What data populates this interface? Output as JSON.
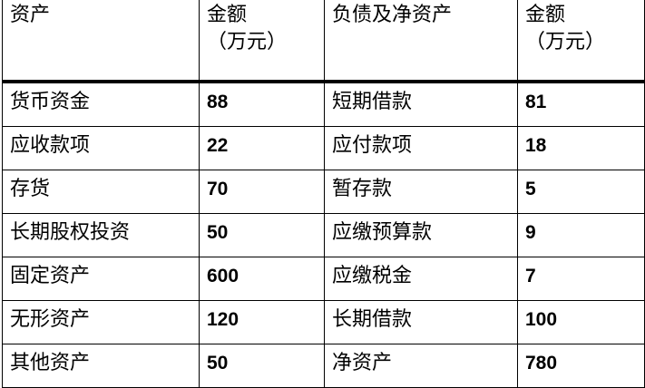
{
  "headers": {
    "assets": "资产",
    "amount1_line1": "金额",
    "amount1_line2": "（万元）",
    "liabilities": "负债及净资产",
    "amount2_line1": "金额",
    "amount2_line2": "（万元）"
  },
  "rows": [
    {
      "asset": "货币资金",
      "asset_amount": "88",
      "liability": "短期借款",
      "liability_amount": "81"
    },
    {
      "asset": "应收款项",
      "asset_amount": "22",
      "liability": "应付款项",
      "liability_amount": "18"
    },
    {
      "asset": "存货",
      "asset_amount": "70",
      "liability": "暂存款",
      "liability_amount": "5"
    },
    {
      "asset": "长期股权投资",
      "asset_amount": "50",
      "liability": "应缴预算款",
      "liability_amount": "9"
    },
    {
      "asset": "固定资产",
      "asset_amount": "600",
      "liability": "应缴税金",
      "liability_amount": "7"
    },
    {
      "asset": "无形资产",
      "asset_amount": "120",
      "liability": "长期借款",
      "liability_amount": "100"
    },
    {
      "asset": "其他资产",
      "asset_amount": "50",
      "liability": "净资产",
      "liability_amount": "780"
    }
  ]
}
